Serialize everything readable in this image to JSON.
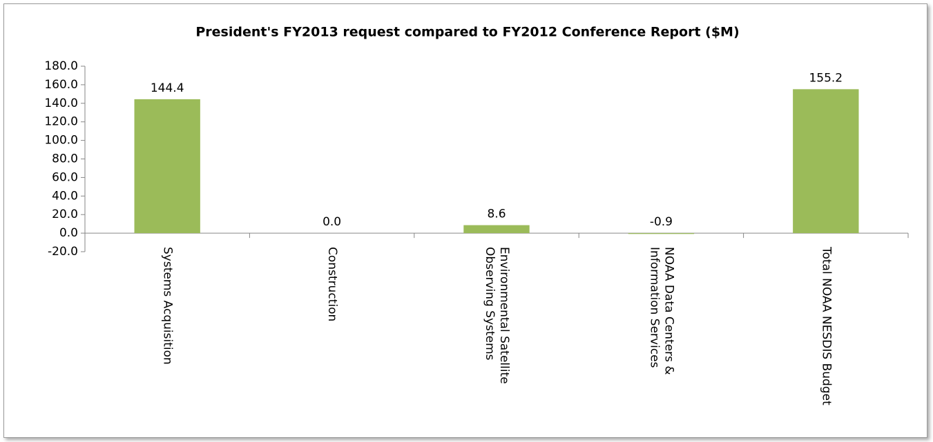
{
  "chart_data": {
    "type": "bar",
    "title": "President's FY2013 request compared to FY2012 Conference Report ($M)",
    "categories": [
      "Systems Acquisition",
      "Construction",
      "Environmental Satellite Observing Systems",
      "NOAA Data Centers & Information Services",
      "Total NOAA NESDIS Budget"
    ],
    "values": [
      144.4,
      0.0,
      8.6,
      -0.9,
      155.2
    ],
    "value_labels": [
      "144.4",
      "0.0",
      "8.6",
      "-0.9",
      "155.2"
    ],
    "color": "#9bbb59",
    "ylim": [
      -20,
      180
    ],
    "yticks": [
      {
        "value": -20,
        "label": "-20.0"
      },
      {
        "value": 0,
        "label": "0.0"
      },
      {
        "value": 20,
        "label": "20.0"
      },
      {
        "value": 40,
        "label": "40.0"
      },
      {
        "value": 60,
        "label": "60.0"
      },
      {
        "value": 80,
        "label": "80.0"
      },
      {
        "value": 100,
        "label": "100.0"
      },
      {
        "value": 120,
        "label": "120.0"
      },
      {
        "value": 140,
        "label": "140.0"
      },
      {
        "value": 160,
        "label": "160.0"
      },
      {
        "value": 180,
        "label": "180.0"
      }
    ],
    "grid": false
  }
}
